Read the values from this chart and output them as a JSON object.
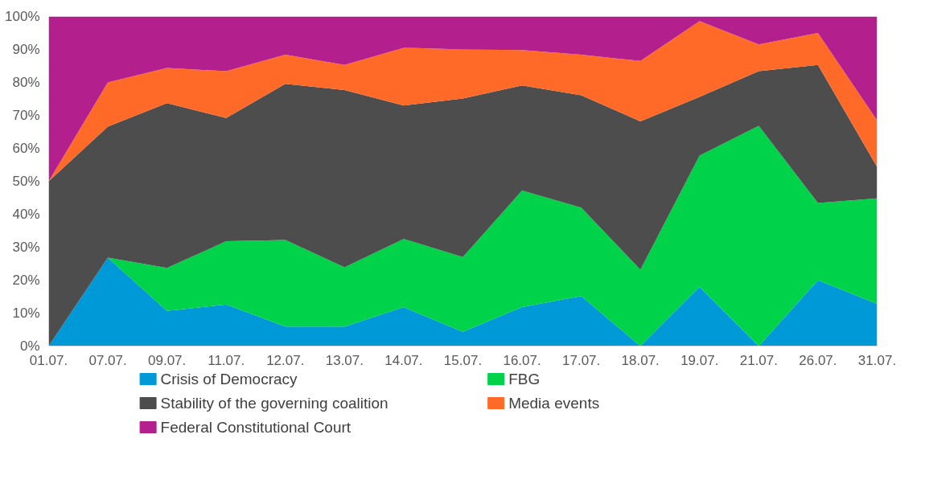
{
  "chart_data": {
    "type": "area",
    "stacked": true,
    "categories": [
      "01.07.",
      "07.07.",
      "09.07.",
      "11.07.",
      "12.07.",
      "13.07.",
      "14.07.",
      "15.07.",
      "16.07.",
      "17.07.",
      "18.07.",
      "19.07.",
      "21.07.",
      "26.07.",
      "31.07."
    ],
    "series": [
      {
        "name": "Crisis of Democracy",
        "color": "#0099d8",
        "values": [
          0,
          26.8,
          10.7,
          12.6,
          5.9,
          5.9,
          11.8,
          4.3,
          11.8,
          15.2,
          0,
          18,
          0,
          20,
          12.8
        ]
      },
      {
        "name": "FBG",
        "color": "#00d24a",
        "values": [
          0,
          0,
          13,
          19.2,
          26.3,
          18,
          20.7,
          22.7,
          35.4,
          26.8,
          23.2,
          39.8,
          66.8,
          23.4,
          32
        ]
      },
      {
        "name": "Stability of the governing coalition",
        "color": "#4d4d4d",
        "values": [
          50,
          39.8,
          50,
          37.4,
          47.4,
          53.8,
          40.5,
          48.1,
          31.9,
          34.1,
          45,
          17.8,
          16.6,
          41.9,
          9.5
        ]
      },
      {
        "name": "Media events",
        "color": "#ff6a28",
        "values": [
          0,
          13.4,
          10.7,
          14.2,
          8.8,
          7.6,
          17.5,
          14.9,
          10.7,
          12.3,
          18.3,
          23,
          8.1,
          9.7,
          14.2
        ]
      },
      {
        "name": "Federal Constitutional Court",
        "color": "#b41f8e",
        "values": [
          50,
          20,
          15.6,
          16.6,
          11.6,
          14.7,
          9.5,
          10,
          10.2,
          11.6,
          13.5,
          1.4,
          8.5,
          5,
          31.5
        ]
      }
    ],
    "ylim": [
      0,
      100
    ],
    "yticks": [
      {
        "value": 0,
        "label": "0%"
      },
      {
        "value": 10,
        "label": "10%"
      },
      {
        "value": 20,
        "label": "20%"
      },
      {
        "value": 30,
        "label": "30%"
      },
      {
        "value": 40,
        "label": "40%"
      },
      {
        "value": 50,
        "label": "50%"
      },
      {
        "value": 60,
        "label": "60%"
      },
      {
        "value": 70,
        "label": "70%"
      },
      {
        "value": 80,
        "label": "80%"
      },
      {
        "value": 90,
        "label": "90%"
      },
      {
        "value": 100,
        "label": "100%"
      }
    ],
    "grid": "y",
    "legend": "bottom"
  }
}
